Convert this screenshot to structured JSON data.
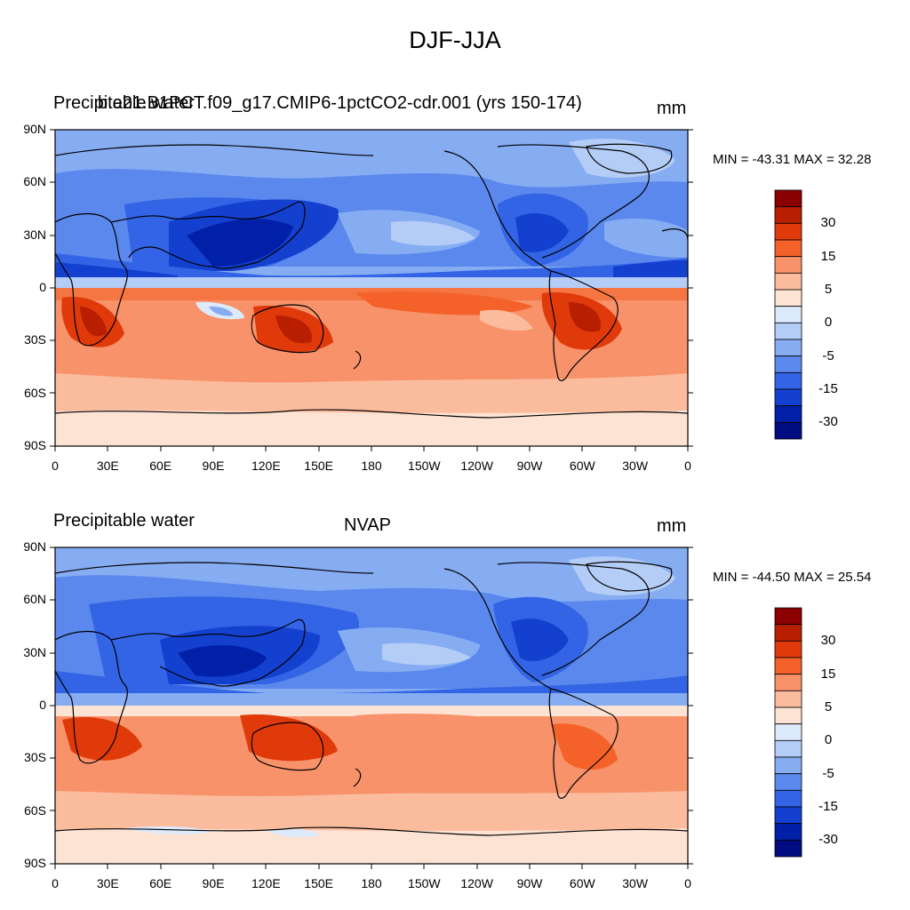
{
  "figure": {
    "title": "DJF-JJA"
  },
  "panels": [
    {
      "left_label": "Precipitable water",
      "center_label": "b.e21.B1PCT.f09_g17.CMIP6-1pctCO2-cdr.001 (yrs 150-174)",
      "units": "mm",
      "minmax": "MIN = -43.31 MAX =  32.28"
    },
    {
      "left_label": "Precipitable water",
      "center_label": "NVAP",
      "units": "mm",
      "minmax": "MIN = -44.50 MAX =  25.54"
    }
  ],
  "axes": {
    "lat_ticks": [
      "90N",
      "60N",
      "30N",
      "0",
      "30S",
      "60S",
      "90S"
    ],
    "lon_ticks": [
      "0",
      "30E",
      "60E",
      "90E",
      "120E",
      "150E",
      "180",
      "150W",
      "120W",
      "90W",
      "60W",
      "30W",
      "0"
    ]
  },
  "colorbar": {
    "labels": [
      "30",
      "15",
      "5",
      "0",
      "-5",
      "-15",
      "-30"
    ],
    "colors": [
      "#8b0000",
      "#b81e00",
      "#e03a0a",
      "#f4622a",
      "#f8926a",
      "#fbbc9e",
      "#fde3d3",
      "#ddeafb",
      "#b4cdf7",
      "#86acf2",
      "#5a88ed",
      "#3264e5",
      "#1440d0",
      "#0020a8",
      "#000c80"
    ]
  },
  "colors": {
    "dark_red": "#c42a08",
    "red": "#e85a2a",
    "orange": "#f49070",
    "light_orange": "#f9c0a4",
    "pale": "#fde6d6",
    "dark_blue": "#1a3fc8",
    "blue": "#3d6ae4",
    "mid_blue": "#7199ef",
    "light_blue": "#aac6f6"
  },
  "chart_data": [
    {
      "type": "heatmap",
      "title": "DJF-JJA",
      "field": "Precipitable water",
      "dataset": "b.e21.B1PCT.f09_g17.CMIP6-1pctCO2-cdr.001 (yrs 150-174)",
      "units": "mm",
      "min": -43.31,
      "max": 32.28,
      "contour_levels": [
        -35,
        -30,
        -25,
        -20,
        -15,
        -10,
        -5,
        0,
        5,
        10,
        15,
        20,
        25,
        30
      ],
      "x_ticks": [
        "0",
        "30E",
        "60E",
        "90E",
        "120E",
        "150E",
        "180",
        "150W",
        "120W",
        "90W",
        "60W",
        "30W",
        "0"
      ],
      "y_ticks": [
        "90N",
        "60N",
        "30N",
        "0",
        "30S",
        "60S",
        "90S"
      ]
    },
    {
      "type": "heatmap",
      "title": "NVAP",
      "field": "Precipitable water",
      "dataset": "NVAP",
      "units": "mm",
      "min": -44.5,
      "max": 25.54,
      "contour_levels": [
        -35,
        -30,
        -25,
        -20,
        -15,
        -10,
        -5,
        0,
        5,
        10,
        15,
        20,
        25,
        30
      ],
      "x_ticks": [
        "0",
        "30E",
        "60E",
        "90E",
        "120E",
        "150E",
        "180",
        "150W",
        "120W",
        "90W",
        "60W",
        "30W",
        "0"
      ],
      "y_ticks": [
        "90N",
        "60N",
        "30N",
        "0",
        "30S",
        "60S",
        "90S"
      ]
    }
  ]
}
